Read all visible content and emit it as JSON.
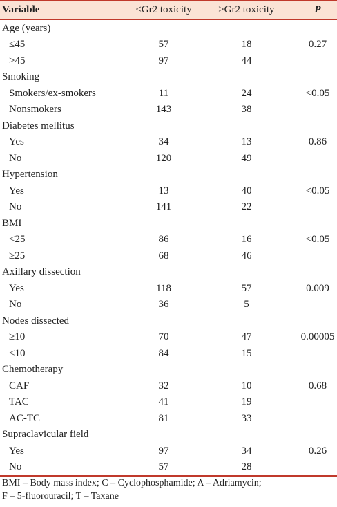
{
  "table": {
    "header": [
      "Variable",
      "<Gr2 toxicity",
      "≥Gr2 toxicity",
      "P"
    ],
    "groups": [
      {
        "label": "Age (years)",
        "p": "0.27",
        "rows": [
          {
            "label": "≤45",
            "lt": 57,
            "ge": 18
          },
          {
            "label": ">45",
            "lt": 97,
            "ge": 44
          }
        ]
      },
      {
        "label": "Smoking",
        "p": "<0.05",
        "rows": [
          {
            "label": "Smokers/ex-smokers",
            "lt": 11,
            "ge": 24
          },
          {
            "label": "Nonsmokers",
            "lt": 143,
            "ge": 38
          }
        ]
      },
      {
        "label": "Diabetes mellitus",
        "p": "0.86",
        "rows": [
          {
            "label": "Yes",
            "lt": 34,
            "ge": 13
          },
          {
            "label": "No",
            "lt": 120,
            "ge": 49
          }
        ]
      },
      {
        "label": "Hypertension",
        "p": "<0.05",
        "rows": [
          {
            "label": "Yes",
            "lt": 13,
            "ge": 40
          },
          {
            "label": "No",
            "lt": 141,
            "ge": 22
          }
        ]
      },
      {
        "label": "BMI",
        "p": "<0.05",
        "rows": [
          {
            "label": "<25",
            "lt": 86,
            "ge": 16
          },
          {
            "label": "≥25",
            "lt": 68,
            "ge": 46
          }
        ]
      },
      {
        "label": "Axillary dissection",
        "p": "0.009",
        "rows": [
          {
            "label": "Yes",
            "lt": 118,
            "ge": 57
          },
          {
            "label": "No",
            "lt": 36,
            "ge": 5
          }
        ]
      },
      {
        "label": "Nodes dissected",
        "p": "0.00005",
        "rows": [
          {
            "label": "≥10",
            "lt": 70,
            "ge": 47
          },
          {
            "label": "<10",
            "lt": 84,
            "ge": 15
          }
        ]
      },
      {
        "label": "Chemotherapy",
        "p": "0.68",
        "rows": [
          {
            "label": "CAF",
            "lt": 32,
            "ge": 10
          },
          {
            "label": "TAC",
            "lt": 41,
            "ge": 19
          },
          {
            "label": "AC-TC",
            "lt": 81,
            "ge": 33
          }
        ]
      },
      {
        "label": "Supraclavicular field",
        "p": "0.26",
        "rows": [
          {
            "label": "Yes",
            "lt": 97,
            "ge": 34
          },
          {
            "label": "No",
            "lt": 57,
            "ge": 28
          }
        ]
      }
    ],
    "footnote": [
      "BMI – Body mass index; C – Cyclophosphamide; A – Adriamycin;",
      "F – 5-fluorouracil; T – Taxane"
    ]
  }
}
